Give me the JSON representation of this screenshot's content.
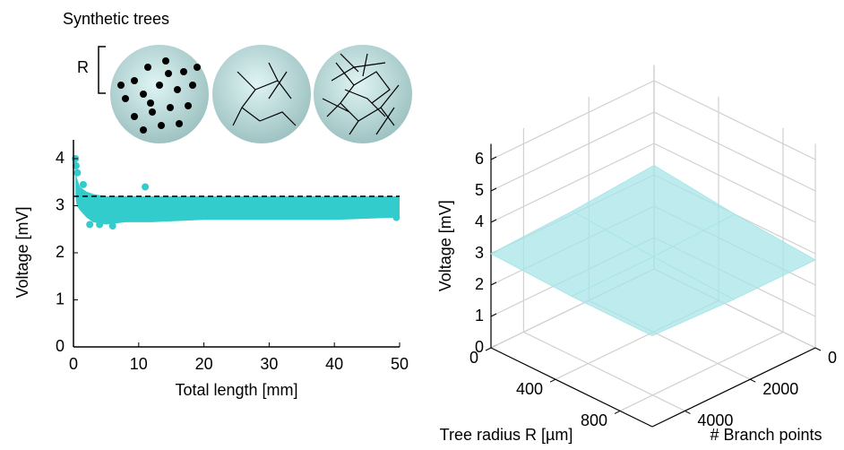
{
  "header": {
    "title": "Synthetic trees",
    "scale_label": "R"
  },
  "chart_data": [
    {
      "type": "scatter",
      "color": "#33cccc",
      "x_label": "Total length [mm]",
      "y_label": "Voltage [mV]",
      "xlim": [
        0,
        50
      ],
      "ylim": [
        0,
        4.4
      ],
      "xticks": [
        0,
        10,
        20,
        30,
        40,
        50
      ],
      "yticks": [
        0,
        1,
        2,
        3,
        4
      ],
      "band": {
        "x": [
          0.3,
          0.5,
          1,
          2,
          3,
          5,
          8,
          12,
          20,
          30,
          40,
          50
        ],
        "upper": [
          3.9,
          3.6,
          3.4,
          3.3,
          3.25,
          3.2,
          3.2,
          3.2,
          3.2,
          3.2,
          3.2,
          3.2
        ],
        "lower": [
          3.2,
          3.0,
          2.9,
          2.75,
          2.65,
          2.6,
          2.65,
          2.65,
          2.7,
          2.7,
          2.7,
          2.75
        ]
      },
      "x": [
        0.3,
        0.4,
        0.6,
        11,
        2.5,
        6,
        49.5,
        1.5,
        4
      ],
      "y": [
        4.0,
        3.85,
        3.7,
        3.4,
        2.6,
        2.57,
        2.75,
        3.45,
        2.6
      ],
      "reference_line": 3.2
    },
    {
      "type": "surface",
      "color": "#a8e6e8",
      "x_label": "Tree radius R [µm]",
      "y_label": "# Branch points",
      "z_label": "Voltage [mV]",
      "xlim": [
        0,
        1000
      ],
      "ylim": [
        0,
        5000
      ],
      "zlim": [
        0,
        6.5
      ],
      "xticks": [
        0,
        400,
        800
      ],
      "yticks": [
        0,
        2000,
        4000
      ],
      "zticks": [
        0,
        1,
        2,
        3,
        4,
        5,
        6
      ],
      "x": [
        0,
        500,
        1000
      ],
      "y": [
        0,
        2500,
        5000
      ],
      "z": [
        [
          3.3,
          3.1,
          3.0
        ],
        [
          3.0,
          2.9,
          2.9
        ],
        [
          2.8,
          2.8,
          2.9
        ]
      ]
    }
  ]
}
